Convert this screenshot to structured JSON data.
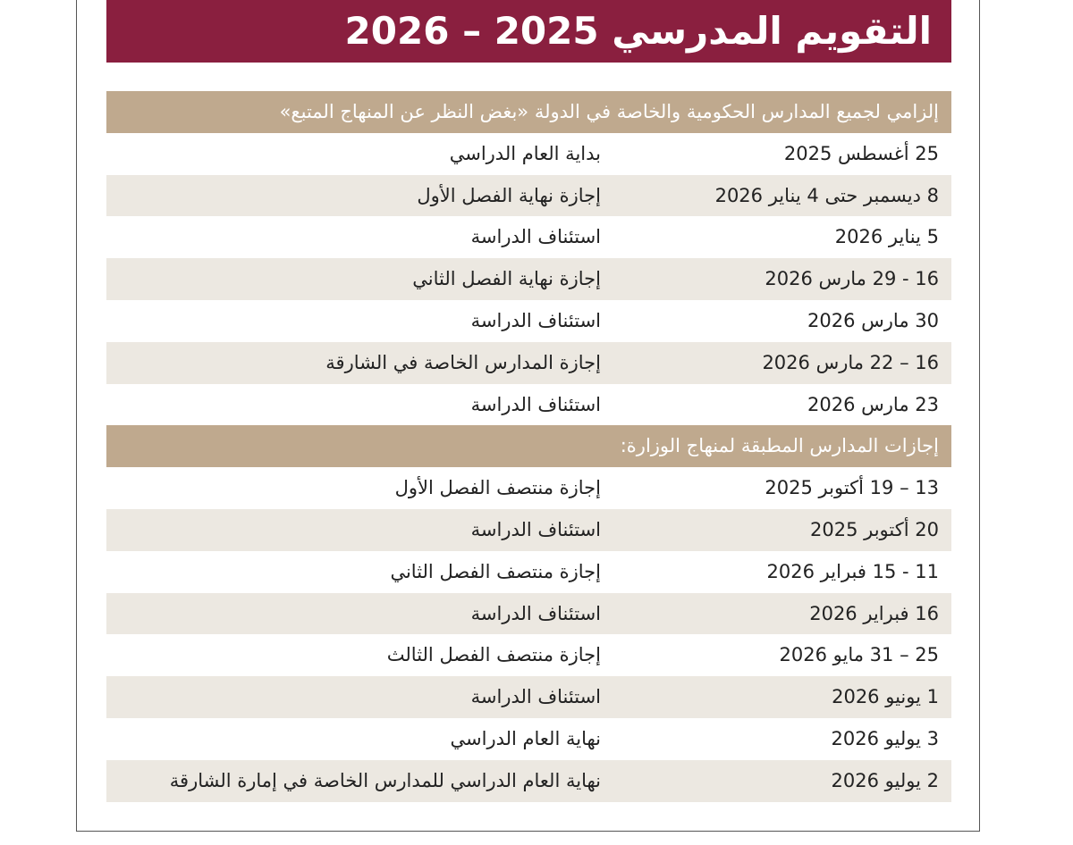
{
  "header": {
    "title": "التقويم المدرسي 2025 – 2026"
  },
  "sections": [
    {
      "title": "إلزامي لجميع المدارس الحكومية والخاصة في الدولة «بغض النظر عن المنهاج المتبع»",
      "rows": [
        [
          "25 أغسطس 2025",
          "بداية العام الدراسي"
        ],
        [
          "8 ديسمبر حتى 4 يناير 2026",
          "إجازة نهاية الفصل الأول"
        ],
        [
          "5 يناير 2026",
          "استئناف الدراسة"
        ],
        [
          "16 - 29 مارس 2026",
          "إجازة نهاية الفصل الثاني"
        ],
        [
          "30 مارس 2026",
          "استئناف الدراسة"
        ],
        [
          "16 – 22 مارس 2026",
          "إجازة المدارس الخاصة في الشارقة"
        ],
        [
          "23 مارس 2026",
          "استئناف الدراسة"
        ]
      ]
    },
    {
      "title": "إجازات المدارس المطبقة لمنهاج الوزارة:",
      "rows": [
        [
          "13 – 19 أكتوبر 2025",
          "إجازة منتصف الفصل الأول"
        ],
        [
          "20 أكتوبر 2025",
          "استئناف الدراسة"
        ],
        [
          "11 - 15 فبراير 2026",
          "إجازة منتصف الفصل الثاني"
        ],
        [
          "16 فبراير 2026",
          "استئناف الدراسة"
        ],
        [
          "25 – 31 مايو 2026",
          "إجازة منتصف الفصل الثالث"
        ],
        [
          "1 يونيو 2026",
          "استئناف الدراسة"
        ],
        [
          "3 يوليو 2026",
          "نهاية العام الدراسي"
        ],
        [
          "2 يوليو 2026",
          "نهاية العام الدراسي للمدارس الخاصة في إمارة الشارقة"
        ]
      ]
    }
  ]
}
